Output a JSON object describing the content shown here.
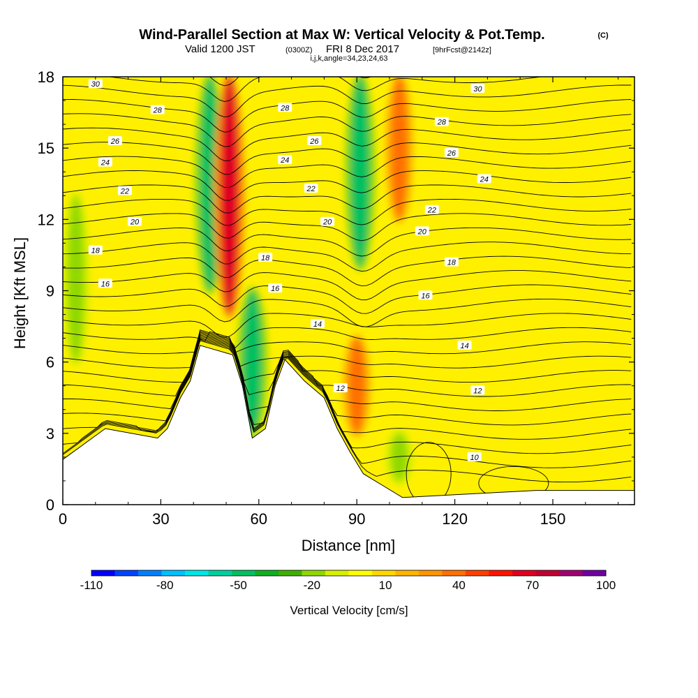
{
  "header": {
    "title": "Wind-Parallel Section at Max W: Vertical Velocity & Pot.Temp.",
    "title_units": "(C)",
    "valid_prefix": "Valid 1200 JST",
    "valid_utc": "(0300Z)",
    "valid_date": "FRI 8 Dec 2017",
    "forecast": "[9hrFcst@2142z]",
    "indices": "i,j,k,angle=34,23,24,63"
  },
  "chart_data": {
    "type": "heatmap",
    "xlabel": "Distance [nm]",
    "ylabel": "Height [Kft MSL]",
    "xlim": [
      0,
      175
    ],
    "ylim": [
      0,
      18
    ],
    "xticks": [
      0,
      30,
      60,
      90,
      120,
      150
    ],
    "yticks": [
      0,
      3,
      6,
      9,
      12,
      15,
      18
    ],
    "colorbar": {
      "label": "Vertical Velocity [cm/s]",
      "tick_labels": [
        "-110",
        "-80",
        "-50",
        "-20",
        "10",
        "40",
        "70",
        "100"
      ],
      "tick_values": [
        -110,
        -80,
        -50,
        -20,
        10,
        40,
        70,
        100
      ],
      "colors": [
        "#0000ff",
        "#0044ff",
        "#0080ff",
        "#00c0ff",
        "#00e6e6",
        "#00d0a0",
        "#00c060",
        "#10b020",
        "#40b000",
        "#90d800",
        "#d8f000",
        "#ffff00",
        "#ffd800",
        "#ffb400",
        "#ff9600",
        "#ff7000",
        "#ff4000",
        "#ff1400",
        "#e00020",
        "#c00030",
        "#a00070",
        "#7000a0"
      ]
    },
    "terrain_kft": [
      [
        0,
        1.9
      ],
      [
        3,
        2.2
      ],
      [
        6,
        2.5
      ],
      [
        9,
        2.8
      ],
      [
        13,
        3.2
      ],
      [
        29,
        2.8
      ],
      [
        32,
        3.2
      ],
      [
        36,
        4.5
      ],
      [
        39,
        5.2
      ],
      [
        42,
        6.7
      ],
      [
        52,
        6.3
      ],
      [
        55,
        5.0
      ],
      [
        58,
        2.8
      ],
      [
        62,
        3.2
      ],
      [
        65,
        5.0
      ],
      [
        68,
        6.1
      ],
      [
        74,
        5.2
      ],
      [
        80,
        4.5
      ],
      [
        84,
        3.2
      ],
      [
        88,
        2.2
      ],
      [
        92,
        1.3
      ],
      [
        98,
        0.8
      ],
      [
        104,
        0.3
      ],
      [
        145,
        0.6
      ],
      [
        175,
        0.6
      ]
    ],
    "vertical_velocity_features": [
      {
        "x": 4,
        "z_range": [
          6,
          13
        ],
        "w": -20
      },
      {
        "x": 45,
        "z_range": [
          9,
          18
        ],
        "w": -50
      },
      {
        "x": 51,
        "z_range": [
          8,
          18
        ],
        "w": 70
      },
      {
        "x": 58,
        "z_range": [
          3,
          9
        ],
        "w": -50
      },
      {
        "x": 91,
        "z_range": [
          10,
          18
        ],
        "w": -50
      },
      {
        "x": 103,
        "z_range": [
          12,
          18
        ],
        "w": 40
      },
      {
        "x": 90,
        "z_range": [
          3,
          7
        ],
        "w": 40
      },
      {
        "x": 103,
        "z_range": [
          1,
          3
        ],
        "w": -20
      }
    ],
    "isentropes_C": [
      10,
      12,
      14,
      16,
      18,
      20,
      22,
      24,
      26,
      28,
      30
    ],
    "isentrope_labels": [
      {
        "x": 10,
        "z": 17.7,
        "text": "30"
      },
      {
        "x": 29,
        "z": 16.6,
        "text": "28"
      },
      {
        "x": 16,
        "z": 15.3,
        "text": "26"
      },
      {
        "x": 13,
        "z": 14.4,
        "text": "24"
      },
      {
        "x": 19,
        "z": 13.2,
        "text": "22"
      },
      {
        "x": 22,
        "z": 11.9,
        "text": "20"
      },
      {
        "x": 10,
        "z": 10.7,
        "text": "18"
      },
      {
        "x": 13,
        "z": 9.3,
        "text": "16"
      },
      {
        "x": 68,
        "z": 16.7,
        "text": "28"
      },
      {
        "x": 77,
        "z": 15.3,
        "text": "26"
      },
      {
        "x": 68,
        "z": 14.5,
        "text": "24"
      },
      {
        "x": 76,
        "z": 13.3,
        "text": "22"
      },
      {
        "x": 81,
        "z": 11.9,
        "text": "20"
      },
      {
        "x": 62,
        "z": 10.4,
        "text": "18"
      },
      {
        "x": 65,
        "z": 9.1,
        "text": "16"
      },
      {
        "x": 78,
        "z": 7.6,
        "text": "14"
      },
      {
        "x": 85,
        "z": 4.9,
        "text": "12"
      },
      {
        "x": 127,
        "z": 17.5,
        "text": "30"
      },
      {
        "x": 116,
        "z": 16.1,
        "text": "28"
      },
      {
        "x": 119,
        "z": 14.8,
        "text": "26"
      },
      {
        "x": 129,
        "z": 13.7,
        "text": "24"
      },
      {
        "x": 113,
        "z": 12.4,
        "text": "22"
      },
      {
        "x": 110,
        "z": 11.5,
        "text": "20"
      },
      {
        "x": 119,
        "z": 10.2,
        "text": "18"
      },
      {
        "x": 111,
        "z": 8.8,
        "text": "16"
      },
      {
        "x": 123,
        "z": 6.7,
        "text": "14"
      },
      {
        "x": 127,
        "z": 4.8,
        "text": "12"
      },
      {
        "x": 126,
        "z": 2.0,
        "text": "10"
      }
    ]
  }
}
